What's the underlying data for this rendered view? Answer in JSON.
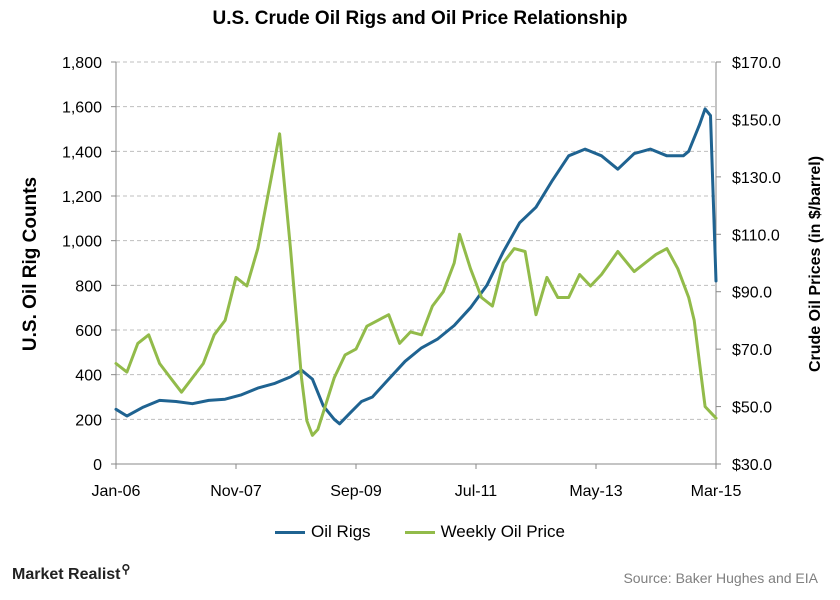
{
  "chart_data": {
    "type": "line",
    "title": "U.S. Crude Oil Rigs and Oil Price Relationship",
    "ylabel_left": "U.S. Oil Rig Counts",
    "ylabel_right": "Crude Oil Prices (in $/barrel)",
    "x_tick_labels": [
      "Jan-06",
      "Nov-07",
      "Sep-09",
      "Jul-11",
      "May-13",
      "Mar-15"
    ],
    "x_range": [
      "2006-01",
      "2015-03"
    ],
    "y_left_range": [
      0,
      1800
    ],
    "y_left_ticks": [
      "0",
      "200",
      "400",
      "600",
      "800",
      "1,000",
      "1,200",
      "1,400",
      "1,600",
      "1,800"
    ],
    "y_right_range": [
      30,
      170
    ],
    "y_right_ticks": [
      "$30.0",
      "$50.0",
      "$70.0",
      "$90.0",
      "$110.0",
      "$130.0",
      "$150.0",
      "$170.0"
    ],
    "grid": "horizontal dashed",
    "legend_position": "bottom",
    "series": [
      {
        "name": "Oil Rigs",
        "axis": "left",
        "color": "#1f6391",
        "x": [
          "2006-01",
          "2006-03",
          "2006-06",
          "2006-09",
          "2006-12",
          "2007-03",
          "2007-06",
          "2007-09",
          "2007-12",
          "2008-03",
          "2008-06",
          "2008-09",
          "2008-11",
          "2009-01",
          "2009-03",
          "2009-05",
          "2009-06",
          "2009-08",
          "2009-10",
          "2009-12",
          "2010-03",
          "2010-06",
          "2010-09",
          "2010-12",
          "2011-03",
          "2011-06",
          "2011-09",
          "2011-12",
          "2012-03",
          "2012-06",
          "2012-09",
          "2012-12",
          "2013-03",
          "2013-06",
          "2013-09",
          "2013-12",
          "2014-03",
          "2014-06",
          "2014-09",
          "2014-10",
          "2014-12",
          "2015-01",
          "2015-02",
          "2015-03"
        ],
        "values": [
          245,
          215,
          255,
          285,
          280,
          270,
          285,
          290,
          310,
          340,
          360,
          390,
          420,
          380,
          260,
          200,
          180,
          230,
          280,
          300,
          380,
          460,
          520,
          560,
          620,
          700,
          800,
          950,
          1080,
          1150,
          1270,
          1380,
          1410,
          1380,
          1320,
          1390,
          1410,
          1380,
          1380,
          1400,
          1520,
          1590,
          1560,
          820
        ]
      },
      {
        "name": "Weekly Oil Price",
        "axis": "right",
        "color": "#92bb4a",
        "x": [
          "2006-01",
          "2006-03",
          "2006-05",
          "2006-07",
          "2006-09",
          "2006-11",
          "2007-01",
          "2007-03",
          "2007-05",
          "2007-07",
          "2007-09",
          "2007-11",
          "2008-01",
          "2008-03",
          "2008-05",
          "2008-07",
          "2008-09",
          "2008-11",
          "2008-12",
          "2009-01",
          "2009-02",
          "2009-03",
          "2009-05",
          "2009-07",
          "2009-09",
          "2009-11",
          "2010-01",
          "2010-03",
          "2010-05",
          "2010-07",
          "2010-09",
          "2010-11",
          "2011-01",
          "2011-03",
          "2011-04",
          "2011-06",
          "2011-08",
          "2011-10",
          "2011-12",
          "2012-02",
          "2012-04",
          "2012-06",
          "2012-08",
          "2012-10",
          "2012-12",
          "2013-02",
          "2013-04",
          "2013-06",
          "2013-09",
          "2013-12",
          "2014-02",
          "2014-04",
          "2014-06",
          "2014-08",
          "2014-10",
          "2014-11",
          "2014-12",
          "2015-01",
          "2015-02",
          "2015-03"
        ],
        "values": [
          65,
          62,
          72,
          75,
          65,
          60,
          55,
          60,
          65,
          75,
          80,
          95,
          92,
          105,
          125,
          145,
          105,
          60,
          45,
          40,
          42,
          48,
          60,
          68,
          70,
          78,
          80,
          82,
          72,
          76,
          75,
          85,
          90,
          100,
          110,
          98,
          88,
          85,
          100,
          105,
          104,
          82,
          95,
          88,
          88,
          96,
          92,
          96,
          104,
          97,
          100,
          103,
          105,
          98,
          88,
          80,
          65,
          50,
          48,
          46
        ]
      }
    ]
  },
  "legend": {
    "oil_rigs": "Oil Rigs",
    "oil_price": "Weekly Oil Price"
  },
  "footer": {
    "brand": "Market Realist",
    "source": "Source: Baker Hughes and EIA"
  }
}
